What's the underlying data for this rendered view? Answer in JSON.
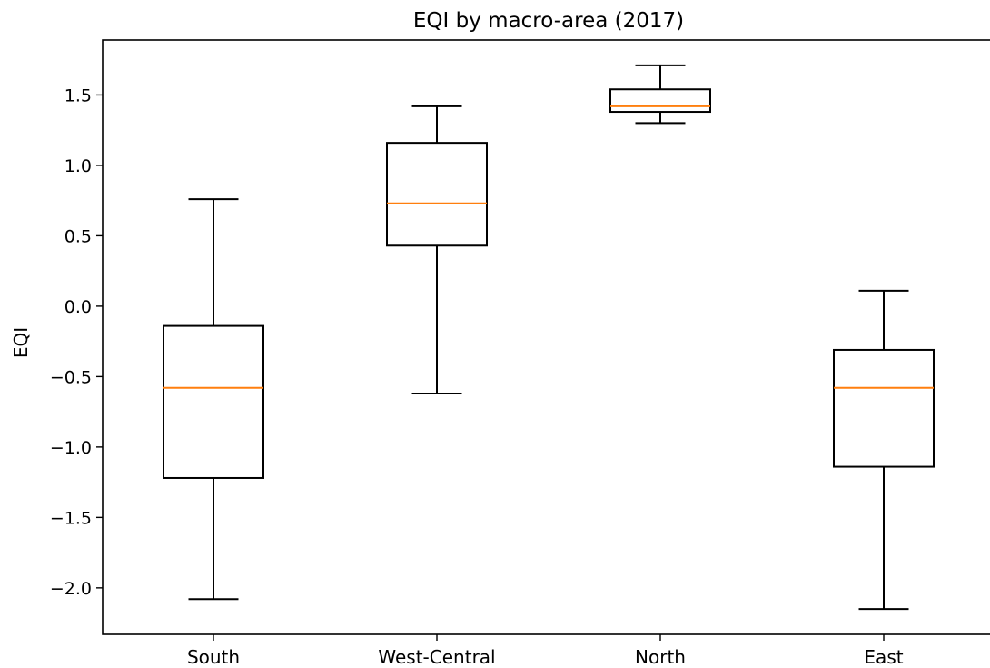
{
  "chart_data": {
    "type": "box",
    "title": "EQI by macro-area (2017)",
    "xlabel": "",
    "ylabel": "EQI",
    "ylim": [
      -2.33,
      1.89
    ],
    "yticks": [
      -2.0,
      -1.5,
      -1.0,
      -0.5,
      0.0,
      0.5,
      1.0,
      1.5
    ],
    "ytick_labels": [
      "−2.0",
      "−1.5",
      "−1.0",
      "−0.5",
      "0.0",
      "0.5",
      "1.0",
      "1.5"
    ],
    "grid": false,
    "categories": [
      "South",
      "West-Central",
      "North",
      "East"
    ],
    "boxes": [
      {
        "whisker_low": -2.08,
        "q1": -1.22,
        "median": -0.58,
        "q3": -0.14,
        "whisker_high": 0.76
      },
      {
        "whisker_low": -0.62,
        "q1": 0.43,
        "median": 0.73,
        "q3": 1.16,
        "whisker_high": 1.42
      },
      {
        "whisker_low": 1.3,
        "q1": 1.38,
        "median": 1.42,
        "q3": 1.54,
        "whisker_high": 1.71
      },
      {
        "whisker_low": -2.15,
        "q1": -1.14,
        "median": -0.58,
        "q3": -0.31,
        "whisker_high": 0.11
      }
    ],
    "colors": {
      "box": "#000000",
      "median": "#ff7f0e",
      "axis": "#000000"
    }
  }
}
